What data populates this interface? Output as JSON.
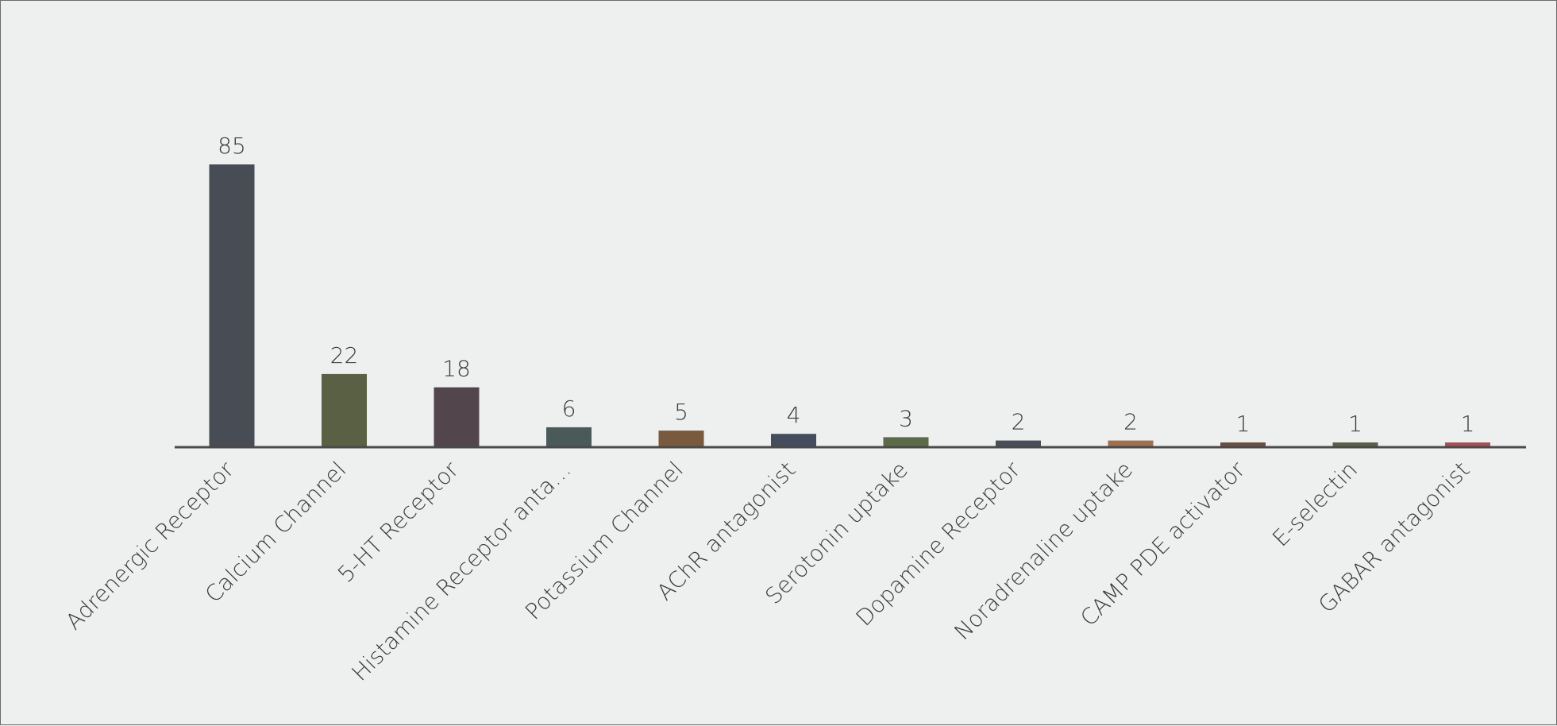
{
  "chart_data": {
    "type": "bar",
    "categories": [
      "Adrenergic Receptor",
      "Calcium Channel",
      "5-HT Receptor",
      "Histamine Receptor anta…",
      "Potassium Channel",
      "AChR antagonist",
      "Serotonin uptake",
      "Dopamine Receptor",
      "Noradrenaline uptake",
      "CAMP PDE activator",
      "E-selectin",
      "GABAR antagonist"
    ],
    "values": [
      85,
      22,
      18,
      6,
      5,
      4,
      3,
      2,
      2,
      1,
      1,
      1
    ],
    "colors": [
      "#484c55",
      "#5a6044",
      "#53454c",
      "#4a5a58",
      "#7a5a3e",
      "#454c5e",
      "#5d6a48",
      "#4a4e5a",
      "#a0704e",
      "#6a5040",
      "#5a6048",
      "#a84f58"
    ],
    "title": "",
    "xlabel": "",
    "ylabel": "",
    "ylim": [
      0,
      85
    ],
    "axis_color": "#4a4a4a",
    "grid": false,
    "legend": "none"
  }
}
